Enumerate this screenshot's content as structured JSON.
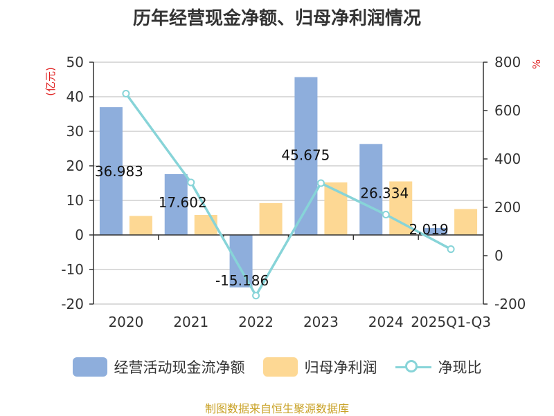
{
  "colors": {
    "bar_cash": "#8eaedc",
    "bar_profit": "#fdd894",
    "line": "#87d4d8",
    "unit": "#e02020",
    "source": "#c9a227"
  },
  "chart_data": {
    "type": "bar",
    "title": "历年经营现金净额、归母净利润情况",
    "categories": [
      "2020",
      "2021",
      "2022",
      "2023",
      "2024",
      "2025Q1-Q3"
    ],
    "series": [
      {
        "name": "经营活动现金流净额",
        "axis": "left",
        "kind": "bar",
        "values": [
          36.983,
          17.602,
          -15.186,
          45.675,
          26.334,
          2.019
        ]
      },
      {
        "name": "归母净利润",
        "axis": "left",
        "kind": "bar",
        "values": [
          5.5,
          5.8,
          9.2,
          15.2,
          15.5,
          7.5
        ]
      },
      {
        "name": "净现比",
        "axis": "right",
        "kind": "line",
        "values": [
          670,
          303,
          -165,
          300,
          170,
          27
        ]
      }
    ],
    "data_labels": [
      "36.983",
      "17.602",
      "-15.186",
      "45.675",
      "26.334",
      "2.019"
    ],
    "y_left": {
      "label": "(亿元)",
      "ylim": [
        -20,
        50
      ],
      "ticks": [
        50,
        40,
        30,
        20,
        10,
        0,
        -10,
        -20
      ]
    },
    "y_right": {
      "label": "%",
      "ylim": [
        -200,
        800
      ],
      "ticks": [
        800,
        600,
        400,
        200,
        0,
        -200
      ]
    },
    "grid": true,
    "legend_position": "bottom"
  },
  "source_note": "制图数据来自恒生聚源数据库"
}
